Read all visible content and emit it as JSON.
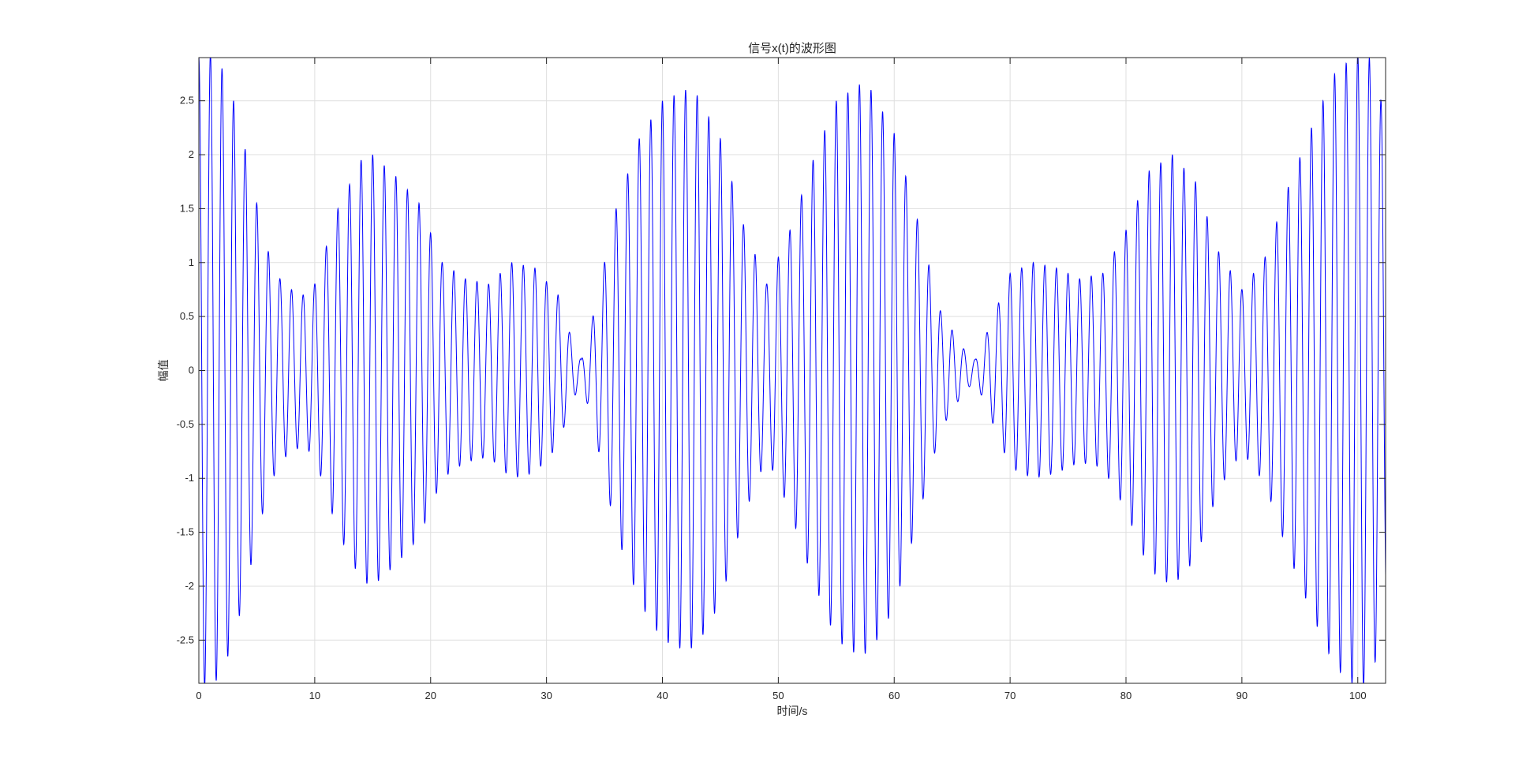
{
  "window": {
    "background_color": "#ffffff"
  },
  "chart_data": {
    "type": "line",
    "title": "信号x(t)的波形图",
    "xlabel": "时间/s",
    "ylabel": "幅值",
    "xlim": [
      0,
      102.4
    ],
    "ylim": [
      -2.9,
      2.9
    ],
    "grid": true,
    "box": true,
    "legend": "none",
    "x_ticks": [
      0,
      10,
      20,
      30,
      40,
      50,
      60,
      70,
      80,
      90,
      100
    ],
    "y_ticks": [
      -2.5,
      -2,
      -1.5,
      -1,
      -0.5,
      0,
      0.5,
      1,
      1.5,
      2,
      2.5
    ],
    "x_tick_labels": [
      "0",
      "10",
      "20",
      "30",
      "40",
      "50",
      "60",
      "70",
      "80",
      "90",
      "100"
    ],
    "y_tick_labels": [
      "-2.5",
      "-2",
      "-1.5",
      "-1",
      "-0.5",
      "0",
      "0.5",
      "1",
      "1.5",
      "2",
      "2.5"
    ],
    "series": [
      {
        "color": "#0000ff",
        "carrier_frequency_hz": 1.0,
        "envelope": {
          "t": [
            0,
            1,
            2,
            3,
            4,
            5,
            6,
            7,
            8,
            9,
            10,
            12,
            14,
            15,
            17,
            19,
            21,
            23,
            25,
            27,
            29,
            31,
            32,
            33,
            34,
            36,
            38,
            40,
            42,
            43,
            45,
            47,
            49,
            51,
            53,
            55,
            57,
            58,
            60,
            62,
            64,
            66,
            67,
            68,
            70,
            72,
            74,
            76,
            78,
            80,
            82,
            84,
            86,
            88,
            90,
            92,
            94,
            96,
            98,
            100,
            101,
            102.4
          ],
          "amplitude": [
            2.9,
            2.95,
            2.8,
            2.5,
            2.05,
            1.55,
            1.1,
            0.85,
            0.75,
            0.7,
            0.8,
            1.5,
            1.95,
            2.0,
            1.8,
            1.55,
            1.0,
            0.85,
            0.8,
            1.0,
            0.95,
            0.7,
            0.35,
            0.1,
            0.5,
            1.5,
            2.15,
            2.5,
            2.6,
            2.55,
            2.15,
            1.35,
            0.8,
            1.3,
            1.95,
            2.5,
            2.65,
            2.6,
            2.2,
            1.4,
            0.55,
            0.2,
            0.1,
            0.35,
            0.9,
            1.0,
            0.95,
            0.85,
            0.9,
            1.3,
            1.85,
            2.0,
            1.75,
            1.1,
            0.75,
            1.05,
            1.7,
            2.25,
            2.75,
            2.95,
            2.9,
            2.35
          ]
        }
      }
    ]
  }
}
